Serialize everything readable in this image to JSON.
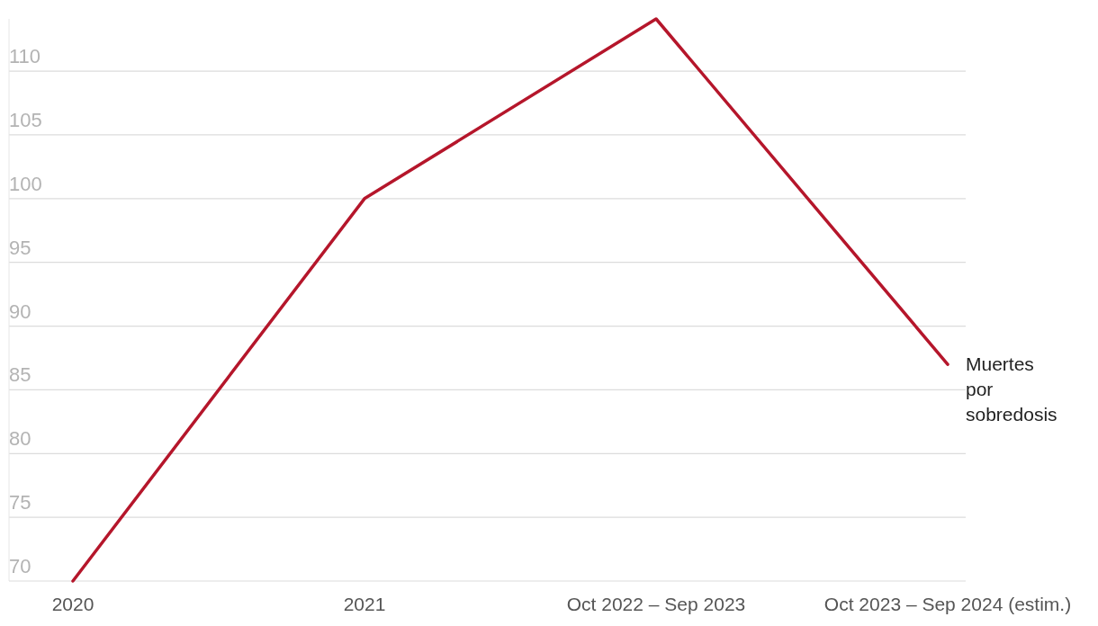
{
  "chart_data": {
    "type": "line",
    "categories": [
      "2020",
      "2021",
      "Oct 2022 – Sep 2023",
      "Oct 2023 – Sep 2024 (estim.)"
    ],
    "series": [
      {
        "name": "Muertes por sobredosis",
        "color": "#b5162b",
        "values": [
          70,
          100,
          114.1,
          87
        ]
      }
    ],
    "ylim": [
      70,
      114.1
    ],
    "yticks": [
      70,
      75,
      80,
      85,
      90,
      95,
      100,
      105,
      110
    ],
    "grid": "y",
    "legend": false
  }
}
